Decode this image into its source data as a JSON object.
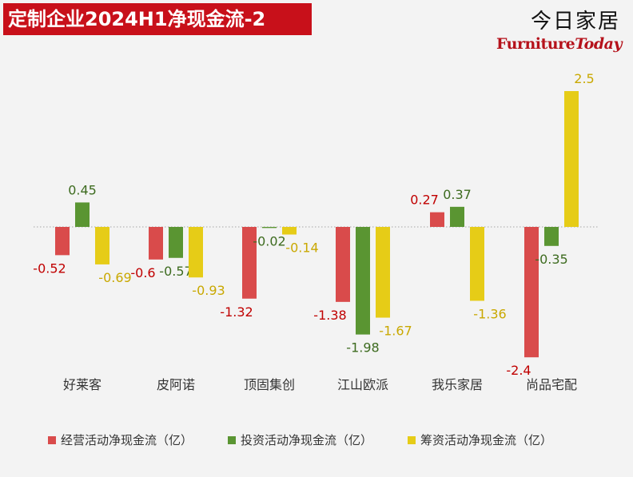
{
  "title": "定制企业2024H1净现金流-2",
  "logo": {
    "cn": "今日家居",
    "en_main": "Furniture",
    "en_today": "Today"
  },
  "chart_data": {
    "type": "bar",
    "categories": [
      "好莱客",
      "皮阿诺",
      "顶固集创",
      "江山欧派",
      "我乐家居",
      "尚品宅配"
    ],
    "series": [
      {
        "name": "经营活动净现金流（亿）",
        "color": "#d94b4b",
        "label_color": "#c00000",
        "values": [
          -0.52,
          -0.6,
          -1.32,
          -1.38,
          0.27,
          -2.4
        ]
      },
      {
        "name": "投资活动净现金流（亿）",
        "color": "#5a9532",
        "label_color": "#3d6b1f",
        "values": [
          0.45,
          -0.57,
          -0.02,
          -1.98,
          0.37,
          -0.35
        ]
      },
      {
        "name": "筹资活动净现金流（亿）",
        "color": "#e6cc17",
        "label_color": "#c9a800",
        "values": [
          -0.69,
          -0.93,
          -0.14,
          -1.67,
          -1.36,
          2.5
        ]
      }
    ],
    "ylim": [
      -2.4,
      2.5
    ],
    "grid": false,
    "legend_position": "bottom"
  }
}
